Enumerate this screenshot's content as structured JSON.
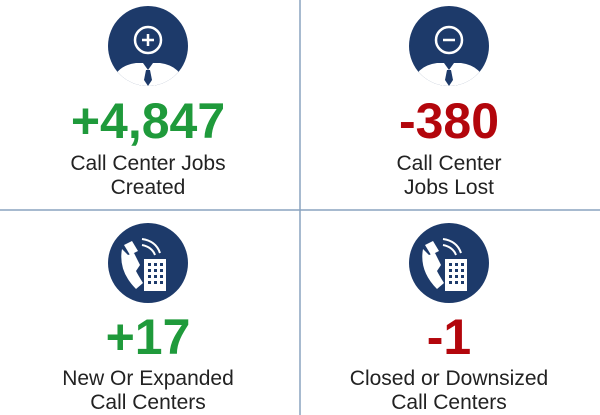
{
  "tiles": [
    {
      "value": "+4,847",
      "label_lines": [
        "Call Center Jobs",
        "Created"
      ]
    },
    {
      "value": "-380",
      "label_lines": [
        "Call Center",
        "Jobs Lost"
      ]
    },
    {
      "value": "+17",
      "label_lines": [
        "New Or Expanded",
        "Call Centers"
      ]
    },
    {
      "value": "-1",
      "label_lines": [
        "Closed or Downsized",
        "Call Centers"
      ]
    }
  ]
}
